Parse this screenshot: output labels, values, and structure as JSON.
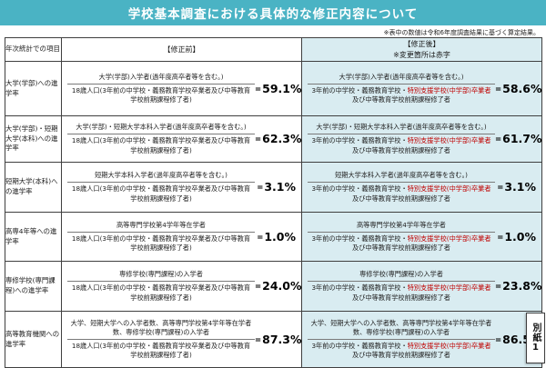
{
  "page": {
    "title": "学校基本調査における具体的な修正内容について",
    "note": "※表中の数値は令和6年度調査結果に基づく算定結果。",
    "side_label": "別紙1"
  },
  "colors": {
    "header_teal": "#4ab3c4",
    "after_column_bg": "#d9ecf1",
    "changed_text_red": "#c00000"
  },
  "table": {
    "equals": "=",
    "col_item_header": "年次統計での項目",
    "col_before_header": "【修正前】",
    "col_after_header": "【修正後】",
    "col_after_subheader": "※変更箇所は赤字",
    "rows": [
      {
        "item": "大学(学部)への進学率",
        "before": {
          "numerator": "大学(学部)入学者(過年度高卒者等を含む。)",
          "denominator": "18歳人口(3年前の中学校・義務教育学校卒業者及び中等教育学校前期課程修了者)",
          "value": "59.1%"
        },
        "after": {
          "numerator": "大学(学部)入学者(過年度高卒者等を含む。)",
          "denom_prefix": "3年前の中学校・義務教育学校・",
          "denom_red": "特別支援学校(中学部)卒業者",
          "denom_suffix": "及び中等教育学校前期課程修了者",
          "value": "58.6%"
        }
      },
      {
        "item": "大学(学部)・短期大学(本科)への進学率",
        "before": {
          "numerator": "大学(学部)・短期大学本科入学者(過年度高卒者等を含む。)",
          "denominator": "18歳人口(3年前の中学校・義務教育学校卒業者及び中等教育学校前期課程修了者)",
          "value": "62.3%"
        },
        "after": {
          "numerator": "大学(学部)・短期大学本科入学者(過年度高卒者等を含む。)",
          "denom_prefix": "3年前の中学校・義務教育学校・",
          "denom_red": "特別支援学校(中学部)卒業者",
          "denom_suffix": "及び中等教育学校前期課程修了者",
          "value": "61.7%"
        }
      },
      {
        "item": "短期大学(本科)への進学率",
        "before": {
          "numerator": "短期大学本科入学者(過年度高卒者等を含む。)",
          "denominator": "18歳人口(3年前の中学校・義務教育学校卒業者及び中等教育学校前期課程修了者)",
          "value": "3.1%"
        },
        "after": {
          "numerator": "短期大学本科入学者(過年度高卒者等を含む。)",
          "denom_prefix": "3年前の中学校・義務教育学校・",
          "denom_red": "特別支援学校(中学部)卒業者",
          "denom_suffix": "及び中等教育学校前期課程修了者",
          "value": "3.1%"
        }
      },
      {
        "item": "高専4年等への進学率",
        "before": {
          "numerator": "高等専門学校第4学年等在学者",
          "denominator": "18歳人口(3年前の中学校・義務教育学校卒業者及び中等教育学校前期課程修了者)",
          "value": "1.0%"
        },
        "after": {
          "numerator": "高等専門学校第4学年等在学者",
          "denom_prefix": "3年前の中学校・義務教育学校・",
          "denom_red": "特別支援学校(中学部)卒業者",
          "denom_suffix": "及び中等教育学校前期課程修了者",
          "value": "1.0%"
        }
      },
      {
        "item": "専修学校(専門課程)への進学率",
        "before": {
          "numerator": "専修学校(専門課程)の入学者",
          "denominator": "18歳人口(3年前の中学校・義務教育学校卒業者及び中等教育学校前期課程修了者)",
          "value": "24.0%"
        },
        "after": {
          "numerator": "専修学校(専門課程)の入学者",
          "denom_prefix": "3年前の中学校・義務教育学校・",
          "denom_red": "特別支援学校(中学部)卒業者",
          "denom_suffix": "及び中等教育学校前期課程修了者",
          "value": "23.8%"
        }
      },
      {
        "item": "高等教育機関への進学率",
        "before": {
          "numerator": "大学、短期大学への入学者数、高等専門学校第4学年等在学者数、専修学校(専門課程)の入学者",
          "denominator": "18歳人口(3年前の中学校・義務教育学校卒業者及び中等教育学校前期課程修了者)",
          "value": "87.3%"
        },
        "after": {
          "numerator": "大学、短期大学への入学者数、高等専門学校第4学年等在学者数、専修学校(専門課程)の入学者",
          "denom_prefix": "3年前の中学校・義務教育学校・",
          "denom_red": "特別支援学校(中学部)卒業者",
          "denom_suffix": "及び中等教育学校前期課程修了者",
          "value": "86.5%"
        }
      }
    ]
  }
}
